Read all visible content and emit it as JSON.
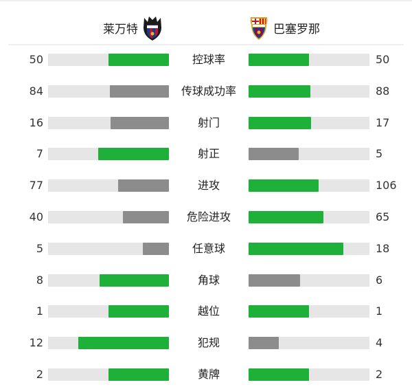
{
  "home_team": {
    "name": "莱万特",
    "crest": "levante-crest"
  },
  "away_team": {
    "name": "巴塞罗那",
    "crest": "barcelona-crest"
  },
  "colors": {
    "leader": "#1fb03a",
    "trailer": "#8c8c8c",
    "track": "#e6e6e6"
  },
  "stats": [
    {
      "label": "控球率",
      "home": "50",
      "away": "50"
    },
    {
      "label": "传球成功率",
      "home": "84",
      "away": "88"
    },
    {
      "label": "射门",
      "home": "16",
      "away": "17"
    },
    {
      "label": "射正",
      "home": "7",
      "away": "5"
    },
    {
      "label": "进攻",
      "home": "77",
      "away": "106"
    },
    {
      "label": "危险进攻",
      "home": "40",
      "away": "65"
    },
    {
      "label": "任意球",
      "home": "5",
      "away": "18"
    },
    {
      "label": "角球",
      "home": "8",
      "away": "6"
    },
    {
      "label": "越位",
      "home": "1",
      "away": "1"
    },
    {
      "label": "犯规",
      "home": "12",
      "away": "4"
    },
    {
      "label": "黄牌",
      "home": "2",
      "away": "2"
    }
  ]
}
